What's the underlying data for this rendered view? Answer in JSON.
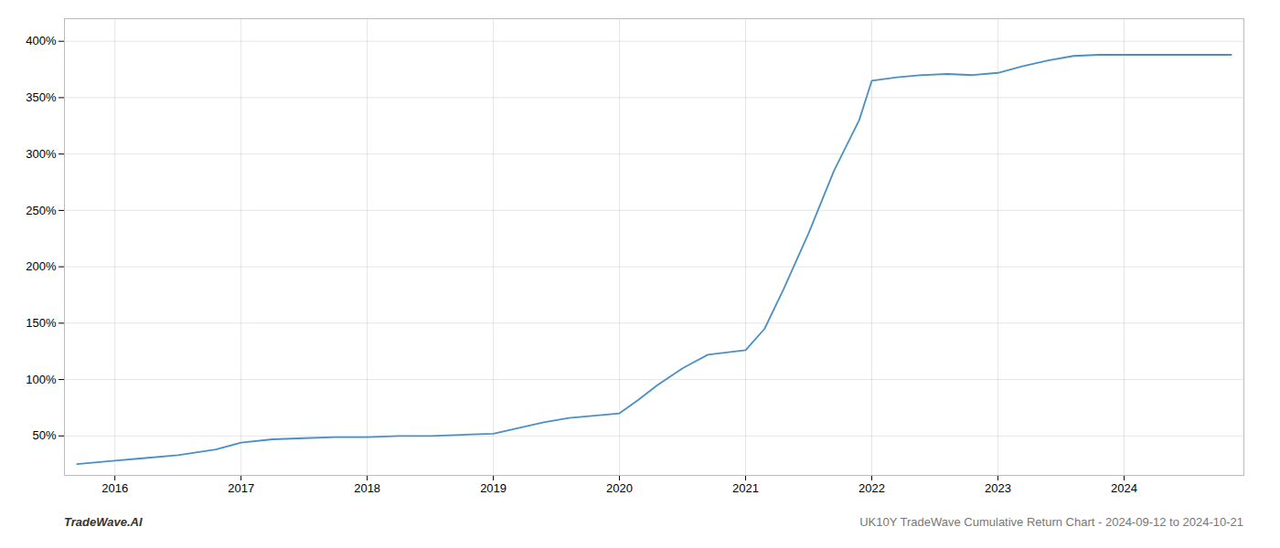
{
  "chart_data": {
    "type": "line",
    "title": "UK10Y TradeWave Cumulative Return Chart - 2024-09-12 to 2024-10-21",
    "annotations": [
      "TradeWave.AI"
    ],
    "color": "#4a90c4",
    "grid": true,
    "x": [
      2015.7,
      2016.0,
      2016.2,
      2016.5,
      2016.8,
      2017.0,
      2017.25,
      2017.5,
      2017.75,
      2018.0,
      2018.25,
      2018.5,
      2018.75,
      2019.0,
      2019.2,
      2019.4,
      2019.6,
      2019.8,
      2020.0,
      2020.15,
      2020.3,
      2020.5,
      2020.7,
      2020.85,
      2021.0,
      2021.15,
      2021.3,
      2021.5,
      2021.7,
      2021.9,
      2022.0,
      2022.2,
      2022.4,
      2022.6,
      2022.8,
      2023.0,
      2023.2,
      2023.4,
      2023.6,
      2023.8,
      2024.0,
      2024.3,
      2024.6,
      2024.85
    ],
    "values": [
      25,
      28,
      30,
      33,
      38,
      44,
      47,
      48,
      49,
      49,
      50,
      50,
      51,
      52,
      57,
      62,
      66,
      68,
      70,
      82,
      95,
      110,
      122,
      124,
      126,
      145,
      180,
      230,
      285,
      330,
      365,
      368,
      370,
      371,
      370,
      372,
      378,
      383,
      387,
      388,
      388,
      388,
      388,
      388
    ],
    "xlim": [
      2015.6,
      2024.95
    ],
    "ylim": [
      15,
      420
    ],
    "xticks": [
      2016,
      2017,
      2018,
      2019,
      2020,
      2021,
      2022,
      2023,
      2024
    ],
    "yticks": [
      {
        "value": 50,
        "label": "50%"
      },
      {
        "value": 100,
        "label": "100%"
      },
      {
        "value": 150,
        "label": "150%"
      },
      {
        "value": 200,
        "label": "200%"
      },
      {
        "value": 250,
        "label": "250%"
      },
      {
        "value": 300,
        "label": "300%"
      },
      {
        "value": 350,
        "label": "350%"
      },
      {
        "value": 400,
        "label": "400%"
      }
    ]
  }
}
